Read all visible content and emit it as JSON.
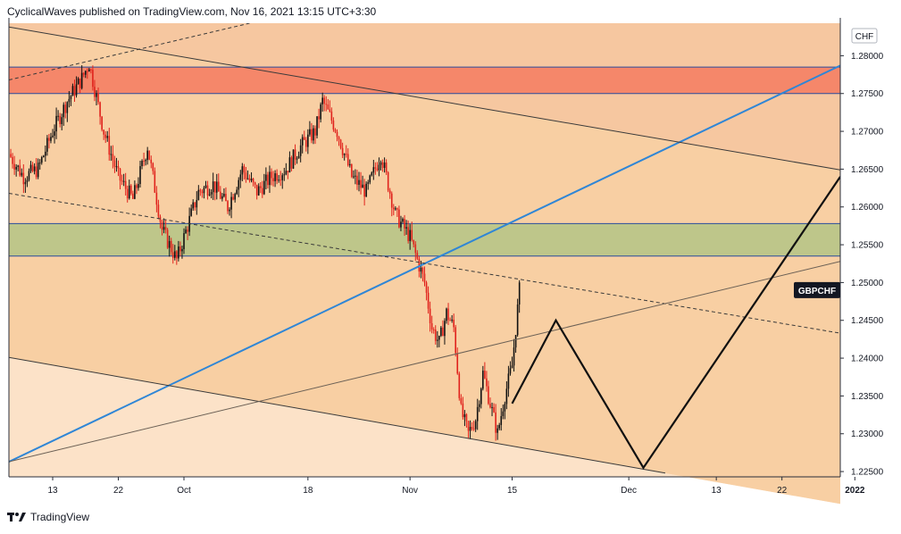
{
  "header": {
    "attribution": "CyclicalWaves published on TradingView.com, Nov 16, 2021 13:15 UTC+3:30"
  },
  "footer": {
    "brand": "TradingView",
    "logo_icon": "tradingview-logo-icon"
  },
  "chart_data": {
    "type": "candlestick",
    "symbol_label": "GBPCHF",
    "currency_label": "CHF",
    "last_price": 1.249,
    "ylim": [
      1.2243,
      1.2843
    ],
    "y_ticks": [
      "1.28000",
      "1.27500",
      "1.27000",
      "1.26500",
      "1.26000",
      "1.25500",
      "1.25000",
      "1.24500",
      "1.24000",
      "1.23500",
      "1.23000",
      "1.22500"
    ],
    "x_ticks": [
      {
        "label": "13",
        "x": "2021-09-13"
      },
      {
        "label": "22",
        "x": "2021-09-22"
      },
      {
        "label": "Oct",
        "x": "2021-10-01"
      },
      {
        "label": "18",
        "x": "2021-10-18"
      },
      {
        "label": "Nov",
        "x": "2021-11-01"
      },
      {
        "label": "15",
        "x": "2021-11-15"
      },
      {
        "label": "Dec",
        "x": "2021-12-01"
      },
      {
        "label": "13",
        "x": "2021-12-13"
      },
      {
        "label": "22",
        "x": "2021-12-22"
      },
      {
        "label": "2022",
        "x": "2022-01-01"
      }
    ],
    "zones": [
      {
        "name": "resistance",
        "from": 1.275,
        "to": 1.2785,
        "color": "#f5876a"
      },
      {
        "name": "support",
        "from": 1.2535,
        "to": 1.2578,
        "color": "#bec68a"
      }
    ],
    "close_path": [
      [
        "2021-09-07",
        1.267
      ],
      [
        "2021-09-09",
        1.264
      ],
      [
        "2021-09-11",
        1.265
      ],
      [
        "2021-09-13",
        1.27
      ],
      [
        "2021-09-15",
        1.274
      ],
      [
        "2021-09-17",
        1.277
      ],
      [
        "2021-09-18",
        1.279
      ],
      [
        "2021-09-20",
        1.27
      ],
      [
        "2021-09-22",
        1.264
      ],
      [
        "2021-09-24",
        1.261
      ],
      [
        "2021-09-26",
        1.268
      ],
      [
        "2021-09-28",
        1.257
      ],
      [
        "2021-09-30",
        1.253
      ],
      [
        "2021-10-01",
        1.256
      ],
      [
        "2021-10-03",
        1.262
      ],
      [
        "2021-10-05",
        1.263
      ],
      [
        "2021-10-07",
        1.26
      ],
      [
        "2021-10-09",
        1.265
      ],
      [
        "2021-10-11",
        1.262
      ],
      [
        "2021-10-13",
        1.264
      ],
      [
        "2021-10-15",
        1.265
      ],
      [
        "2021-10-17",
        1.268
      ],
      [
        "2021-10-19",
        1.27
      ],
      [
        "2021-10-20",
        1.274
      ],
      [
        "2021-10-22",
        1.27
      ],
      [
        "2021-10-24",
        1.264
      ],
      [
        "2021-10-26",
        1.262
      ],
      [
        "2021-10-28",
        1.267
      ],
      [
        "2021-10-30",
        1.259
      ],
      [
        "2021-11-01",
        1.256
      ],
      [
        "2021-11-03",
        1.25
      ],
      [
        "2021-11-04",
        1.244
      ],
      [
        "2021-11-05",
        1.242
      ],
      [
        "2021-11-06",
        1.246
      ],
      [
        "2021-11-07",
        1.244
      ],
      [
        "2021-11-08",
        1.233
      ],
      [
        "2021-11-09",
        1.23
      ],
      [
        "2021-11-10",
        1.232
      ],
      [
        "2021-11-11",
        1.238
      ],
      [
        "2021-11-12",
        1.234
      ],
      [
        "2021-11-13",
        1.23
      ],
      [
        "2021-11-14",
        1.235
      ],
      [
        "2021-11-15",
        1.239
      ],
      [
        "2021-11-16",
        1.249
      ]
    ],
    "projection": [
      [
        "2021-11-15",
        1.234
      ],
      [
        "2021-11-21",
        1.245
      ],
      [
        "2021-12-03",
        1.2255
      ],
      [
        "2021-12-30",
        1.264
      ]
    ],
    "trendlines": [
      {
        "name": "blue-uptrend",
        "color": "#2f86d6",
        "width": 2,
        "dash": "",
        "p1": [
          "2021-09-07",
          1.2263
        ],
        "p2": [
          "2021-12-30",
          1.2787
        ]
      },
      {
        "name": "upper-channel",
        "color": "#3a3a3a",
        "width": 1,
        "dash": "",
        "p1": [
          "2021-09-07",
          1.2838
        ],
        "p2": [
          "2021-12-30",
          1.2649
        ]
      },
      {
        "name": "lower-channel",
        "color": "#3a3a3a",
        "width": 1,
        "dash": "",
        "p1": [
          "2021-09-07",
          1.2401
        ],
        "p2": [
          "2021-12-06",
          1.2248
        ]
      },
      {
        "name": "mid-dashed",
        "color": "#3a3a3a",
        "width": 1,
        "dash": "4,3",
        "p1": [
          "2021-09-07",
          1.2618
        ],
        "p2": [
          "2021-12-30",
          1.2433
        ]
      },
      {
        "name": "thin-rising",
        "color": "#6b6055",
        "width": 1,
        "dash": "",
        "p1": [
          "2021-09-07",
          1.2263
        ],
        "p2": [
          "2021-12-30",
          1.2528
        ]
      },
      {
        "name": "top-dashed",
        "color": "#3a3a3a",
        "width": 1,
        "dash": "4,3",
        "p1": [
          "2021-09-07",
          1.2768
        ],
        "p2": [
          "2021-10-10",
          1.2843
        ]
      }
    ]
  }
}
